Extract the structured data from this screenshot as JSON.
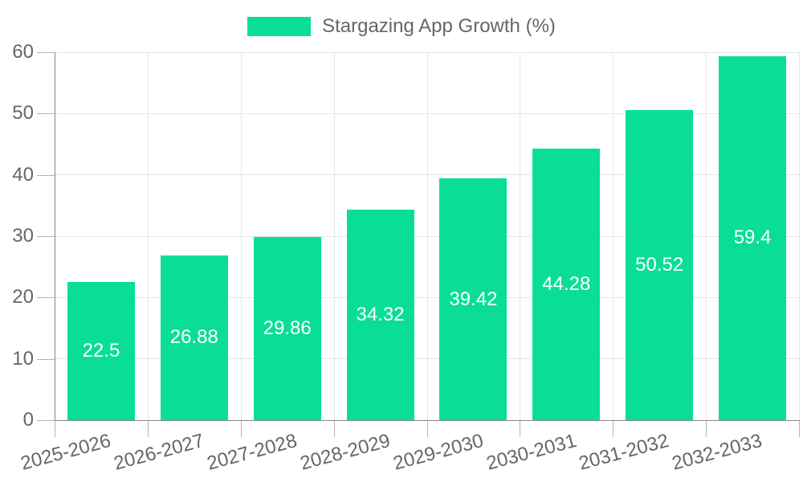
{
  "page": {
    "background": "#ffffff"
  },
  "legend": {
    "label": "Stargazing App Growth (%)",
    "swatch_color": "#0ade96",
    "position": "top-center"
  },
  "chart_data": {
    "type": "bar",
    "title": "Stargazing App Growth (%)",
    "categories": [
      "2025-2026",
      "2026-2027",
      "2027-2028",
      "2028-2029",
      "2029-2030",
      "2030-2031",
      "2031-2032",
      "2032-2033"
    ],
    "values": [
      22.5,
      26.88,
      29.86,
      34.32,
      39.42,
      44.28,
      50.52,
      59.4
    ],
    "value_labels": [
      "22.5",
      "26.88",
      "29.86",
      "34.32",
      "39.42",
      "44.28",
      "50.52",
      "59.4"
    ],
    "xlabel": "",
    "ylabel": "",
    "ylim": [
      0,
      60
    ],
    "yticks": [
      0,
      10,
      20,
      30,
      40,
      50,
      60
    ],
    "grid": true,
    "x_label_rotation_deg": -15,
    "colors": {
      "bar": "#0ade96",
      "value_label": "#ffffff",
      "axis": "#888888",
      "gridline": "#e6e6e6",
      "tick": "#b3b3b3",
      "text": "#666666",
      "background": "#ffffff"
    }
  }
}
